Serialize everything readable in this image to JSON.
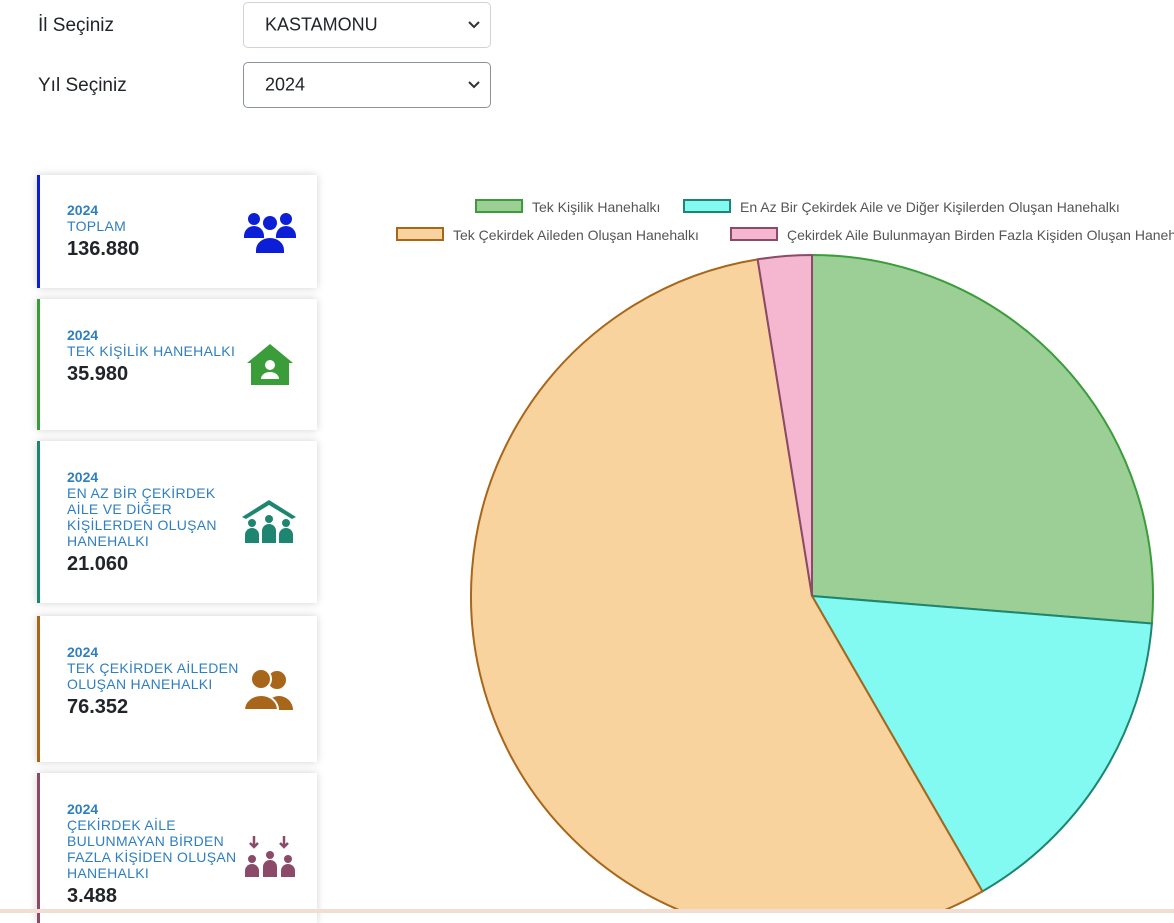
{
  "filters": {
    "province": {
      "label": "İl Seçiniz",
      "value": "KASTAMONU"
    },
    "year": {
      "label": "Yıl Seçiniz",
      "value": "2024"
    }
  },
  "cards": [
    {
      "year": "2024",
      "title": "TOPLAM",
      "value": "136.880",
      "color": "#0d1fd6",
      "icon": "people-group-icon"
    },
    {
      "year": "2024",
      "title": "TEK KİŞİLİK HANEHALKI",
      "value": "35.980",
      "color": "#3a9d3a",
      "icon": "house-user-icon"
    },
    {
      "year": "2024",
      "title": "EN AZ BİR ÇEKİRDEK AİLE VE DİĞER KİŞİLERDEN OLUŞAN HANEHALKI",
      "value": "21.060",
      "color": "#1e8570",
      "icon": "family-house-icon"
    },
    {
      "year": "2024",
      "title": "TEK ÇEKİRDEK AİLEDEN OLUŞAN HANEHALKI",
      "value": "76.352",
      "color": "#a8661b",
      "icon": "user-pair-icon"
    },
    {
      "year": "2024",
      "title": "ÇEKİRDEK AİLE BULUNMAYAN BİRDEN FAZLA KİŞİDEN OLUŞAN HANEHALKI",
      "value": "3.488",
      "color": "#8a4a68",
      "icon": "people-arrows-icon"
    }
  ],
  "chart_data": {
    "type": "pie",
    "title": "",
    "legend_position": "top",
    "categories": [
      "Tek Kişilik Hanehalkı",
      "En Az Bir Çekirdek Aile ve Diğer Kişilerden Oluşan Hanehalkı",
      "Tek Çekirdek Aileden Oluşan Hanehalkı",
      "Çekirdek Aile Bulunmayan Birden Fazla Kişiden Oluşan Hanehalkı"
    ],
    "values": [
      35980,
      21060,
      76352,
      3488
    ],
    "colors": [
      "#9bcf96",
      "#82f9f1",
      "#f8d39e",
      "#f5b7d0"
    ],
    "border_colors": [
      "#3a9d3a",
      "#1e8570",
      "#a8661b",
      "#8a4a68"
    ]
  }
}
